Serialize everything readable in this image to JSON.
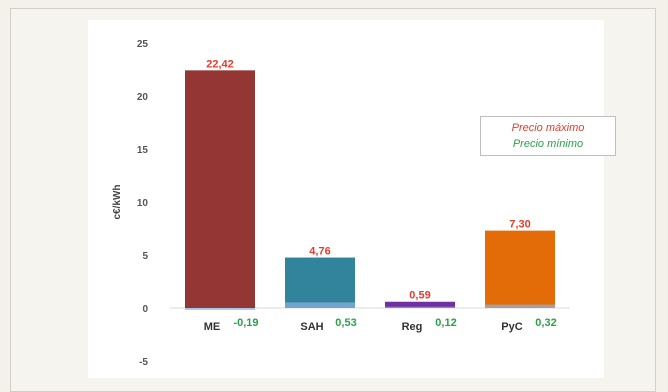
{
  "chart_data": {
    "type": "bar",
    "ylabel": "c€/kWh",
    "ylim": [
      -5,
      25
    ],
    "yticks": [
      -5,
      0,
      5,
      10,
      15,
      20,
      25
    ],
    "categories": [
      "ME",
      "SAH",
      "Reg",
      "PyC"
    ],
    "series": [
      {
        "name": "Precio máximo",
        "values": [
          22.42,
          4.76,
          0.59,
          7.3
        ],
        "labels": [
          "22,42",
          "4,76",
          "0,59",
          "7,30"
        ],
        "colors": [
          "#943634",
          "#31849b",
          "#7030a0",
          "#e36c09"
        ],
        "label_color": "#e53c2b"
      },
      {
        "name": "Precio mínimo",
        "values": [
          -0.19,
          0.53,
          0.12,
          0.32
        ],
        "labels": [
          "-0,19",
          "0,53",
          "0,12",
          "0,32"
        ],
        "label_color": "#2aa14a"
      }
    ],
    "legend": "top-right",
    "grid": false
  }
}
